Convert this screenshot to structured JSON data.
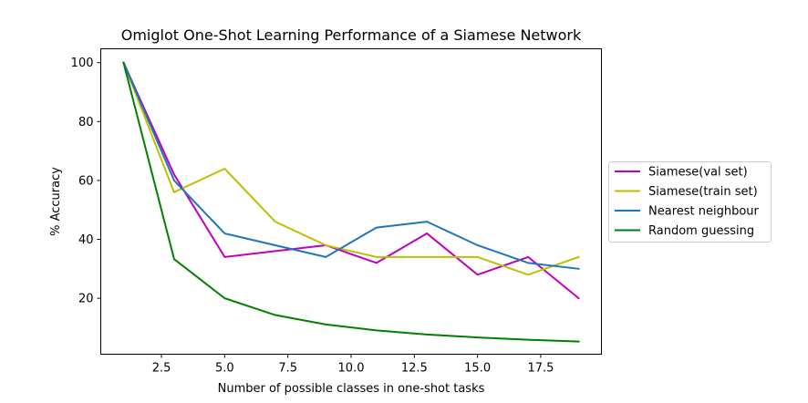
{
  "chart_data": {
    "type": "line",
    "title": "Omiglot One-Shot Learning Performance of a Siamese Network",
    "xlabel": "Number of possible classes in one-shot tasks",
    "ylabel": "% Accuracy",
    "xlim": [
      0.1,
      19.9
    ],
    "ylim": [
      1.0,
      104.7
    ],
    "xticks": [
      2.5,
      5.0,
      7.5,
      10.0,
      12.5,
      15.0,
      17.5
    ],
    "xtick_labels": [
      "2.5",
      "5.0",
      "7.5",
      "10.0",
      "12.5",
      "15.0",
      "17.5"
    ],
    "yticks": [
      20,
      40,
      60,
      80,
      100
    ],
    "ytick_labels": [
      "20",
      "40",
      "60",
      "80",
      "100"
    ],
    "grid": false,
    "legend_placement": "center-right outside",
    "x": [
      1,
      3,
      5,
      7,
      9,
      11,
      13,
      15,
      17,
      19
    ],
    "series": [
      {
        "name": "Siamese(val set)",
        "color": "#bf00bf",
        "values": [
          100,
          62,
          34,
          36,
          38,
          32,
          42,
          28,
          34,
          20
        ]
      },
      {
        "name": "Siamese(train set)",
        "color": "#bfbf00",
        "values": [
          100,
          56,
          64,
          46,
          38,
          34,
          34,
          34,
          28,
          34
        ]
      },
      {
        "name": "Nearest neighbour",
        "color": "#1f77b4",
        "values": [
          100,
          60,
          42,
          38,
          34,
          44,
          46,
          38,
          32,
          30
        ]
      },
      {
        "name": "Random guessing",
        "color": "#008000",
        "values": [
          100,
          33.3,
          20,
          14.3,
          11.1,
          9.1,
          7.7,
          6.7,
          5.9,
          5.3
        ]
      }
    ]
  }
}
